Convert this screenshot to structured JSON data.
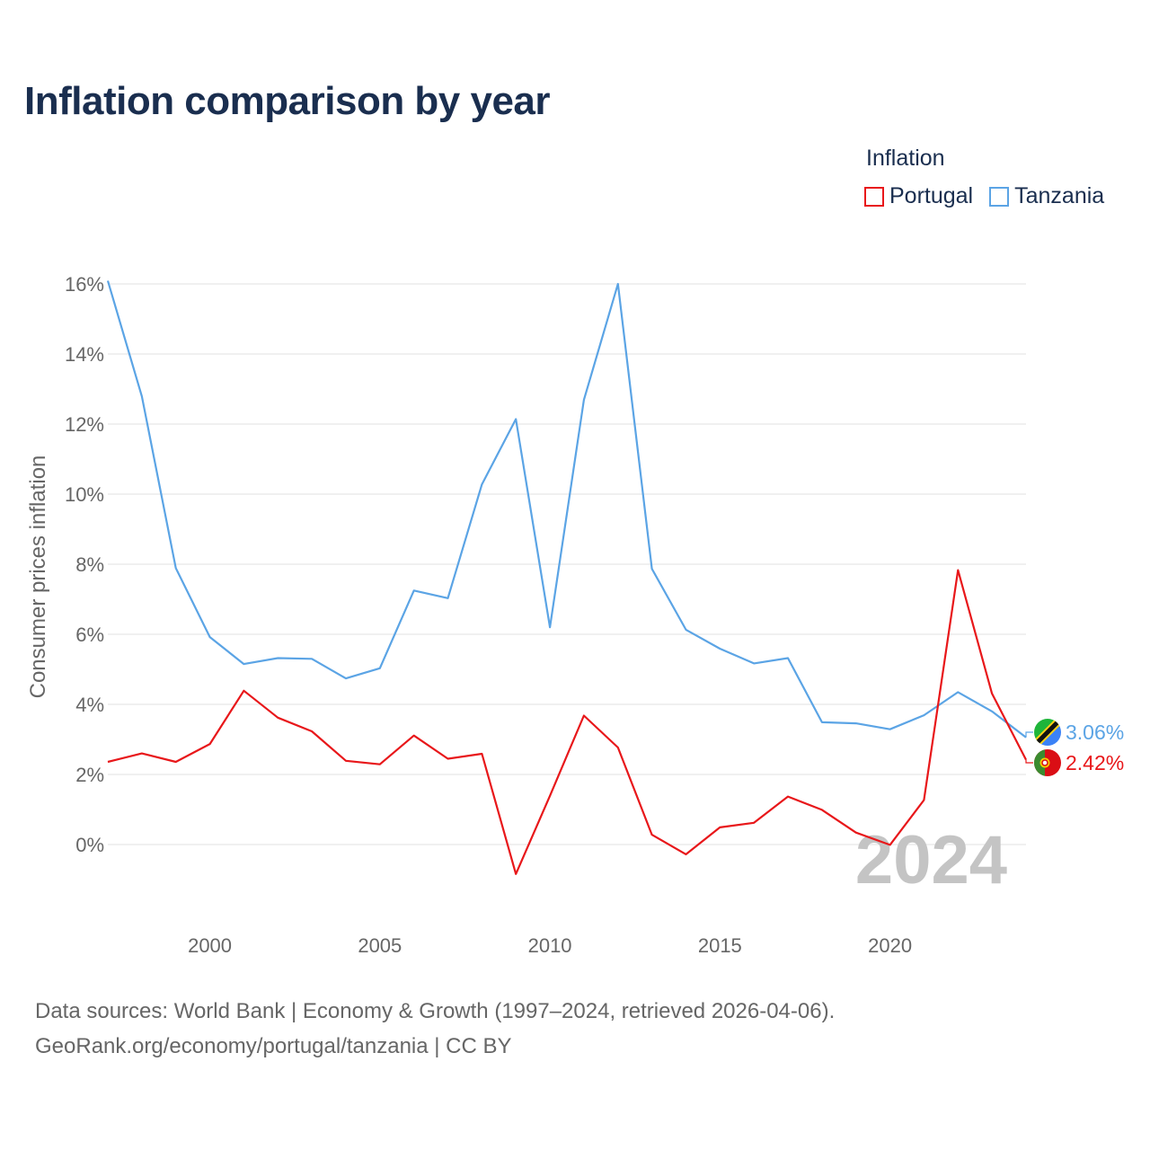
{
  "title": "Inflation comparison by year",
  "legend": {
    "title": "Inflation",
    "items": [
      {
        "label": "Portugal",
        "color": "#e8171a"
      },
      {
        "label": "Tanzania",
        "color": "#5ba4e5"
      }
    ]
  },
  "chart_data": {
    "type": "line",
    "title": "Inflation comparison by year",
    "xlabel": "",
    "ylabel": "Consumer prices inflation",
    "xlim": [
      1997,
      2024
    ],
    "ylim": [
      -2,
      16
    ],
    "x_ticks": [
      2000,
      2005,
      2010,
      2015,
      2020
    ],
    "y_ticks": [
      0,
      2,
      4,
      6,
      8,
      10,
      12,
      14,
      16
    ],
    "y_tick_suffix": "%",
    "grid": true,
    "legend_position": "top-right",
    "highlight_year": "2024",
    "x": [
      1997,
      1998,
      1999,
      2000,
      2001,
      2002,
      2003,
      2004,
      2005,
      2006,
      2007,
      2008,
      2009,
      2010,
      2011,
      2012,
      2013,
      2014,
      2015,
      2016,
      2017,
      2018,
      2019,
      2020,
      2021,
      2022,
      2023,
      2024
    ],
    "series": [
      {
        "name": "Portugal",
        "color": "#e8171a",
        "end_label": "2.42%",
        "flag": "portugal-flag-icon",
        "values": [
          2.36,
          2.6,
          2.36,
          2.87,
          4.39,
          3.62,
          3.23,
          2.39,
          2.29,
          3.11,
          2.45,
          2.59,
          -0.84,
          1.39,
          3.68,
          2.77,
          0.28,
          -0.28,
          0.49,
          0.62,
          1.37,
          0.99,
          0.34,
          -0.01,
          1.27,
          7.83,
          4.31,
          2.42
        ]
      },
      {
        "name": "Tanzania",
        "color": "#5ba4e5",
        "end_label": "3.06%",
        "flag": "tanzania-flag-icon",
        "values": [
          16.09,
          12.79,
          7.89,
          5.92,
          5.15,
          5.32,
          5.3,
          4.74,
          5.03,
          7.25,
          7.03,
          10.28,
          12.14,
          6.2,
          12.69,
          16.0,
          7.87,
          6.13,
          5.59,
          5.17,
          5.32,
          3.49,
          3.46,
          3.29,
          3.69,
          4.35,
          3.8,
          3.06
        ]
      }
    ]
  },
  "source": {
    "line1": "Data sources: World Bank | Economy & Growth (1997–2024, retrieved 2026-04-06).",
    "line2": "GeoRank.org/economy/portugal/tanzania | CC BY"
  }
}
